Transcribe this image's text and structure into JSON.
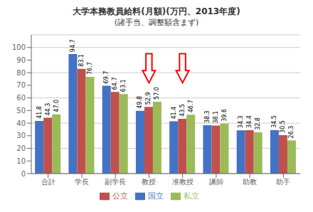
{
  "chart_data": {
    "type": "bar",
    "title": "大学本務教員給料(月額)(万円、2013年度)",
    "subtitle": "(諸手当、調整額含まず)",
    "categories": [
      "合計",
      "学長",
      "副学長",
      "教授",
      "准教授",
      "講師",
      "助教",
      "助手"
    ],
    "series": [
      {
        "name": "国立",
        "color": "#4472C4",
        "values": [
          41.8,
          94.7,
          69.7,
          49.8,
          41.4,
          38.3,
          34.3,
          34.5
        ]
      },
      {
        "name": "公立",
        "color": "#C0504D",
        "values": [
          44.3,
          83.1,
          64.7,
          52.9,
          43.5,
          38.1,
          34.4,
          30.5
        ]
      },
      {
        "name": "私立",
        "color": "#9BBB59",
        "values": [
          47.0,
          76.7,
          63.1,
          57.0,
          46.7,
          39.6,
          32.8,
          26.3
        ],
        "value_labels": [
          "47.0",
          "76.7",
          "63.1",
          "57.0",
          "46.7",
          "39.6",
          "32.8",
          "26.3"
        ]
      }
    ],
    "ylim": [
      0,
      110
    ],
    "yticks": [
      0,
      10,
      20,
      30,
      40,
      50,
      60,
      70,
      80,
      90,
      100
    ],
    "grid": true,
    "legend": "bottom",
    "data_labels": true,
    "annotations": [
      {
        "type": "arrow",
        "category": "教授",
        "from": 95,
        "to": 72,
        "color": "red"
      },
      {
        "type": "arrow",
        "category": "准教授",
        "from": 95,
        "to": 72,
        "color": "red"
      }
    ]
  }
}
